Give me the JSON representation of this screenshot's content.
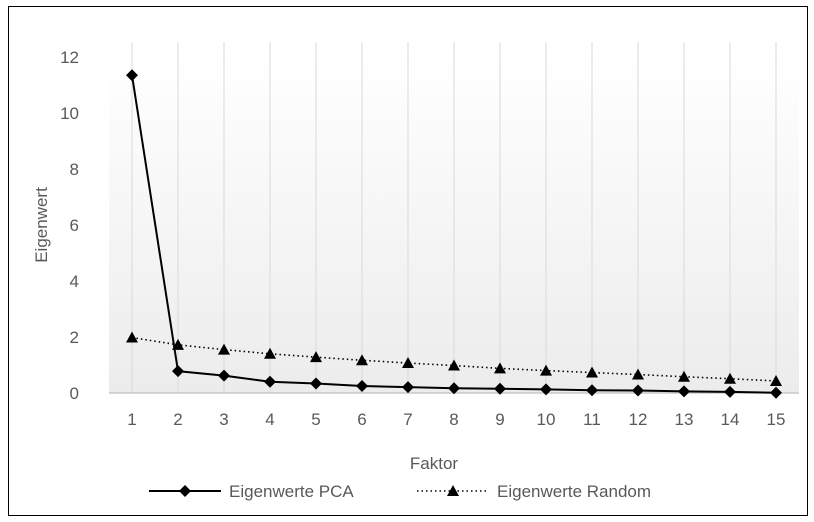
{
  "chart_data": {
    "type": "line",
    "title": "",
    "xlabel": "Faktor",
    "ylabel": "Eigenwert",
    "x": [
      1,
      2,
      3,
      4,
      5,
      6,
      7,
      8,
      9,
      10,
      11,
      12,
      13,
      14,
      15
    ],
    "ylim": [
      0,
      12
    ],
    "yticks": [
      0,
      2,
      4,
      6,
      8,
      10,
      12
    ],
    "grid": "vertical",
    "legend_position": "bottom",
    "series": [
      {
        "name": "Eigenwerte PCA",
        "line_style": "solid",
        "marker": "diamond",
        "color": "#000000",
        "values": [
          11.35,
          0.78,
          0.62,
          0.4,
          0.34,
          0.25,
          0.21,
          0.17,
          0.15,
          0.13,
          0.1,
          0.09,
          0.06,
          0.04,
          0.01
        ]
      },
      {
        "name": "Eigenwerte Random",
        "line_style": "dotted",
        "marker": "triangle",
        "color": "#000000",
        "values": [
          1.98,
          1.72,
          1.55,
          1.4,
          1.28,
          1.17,
          1.07,
          0.98,
          0.88,
          0.8,
          0.73,
          0.66,
          0.58,
          0.51,
          0.43
        ]
      }
    ]
  }
}
